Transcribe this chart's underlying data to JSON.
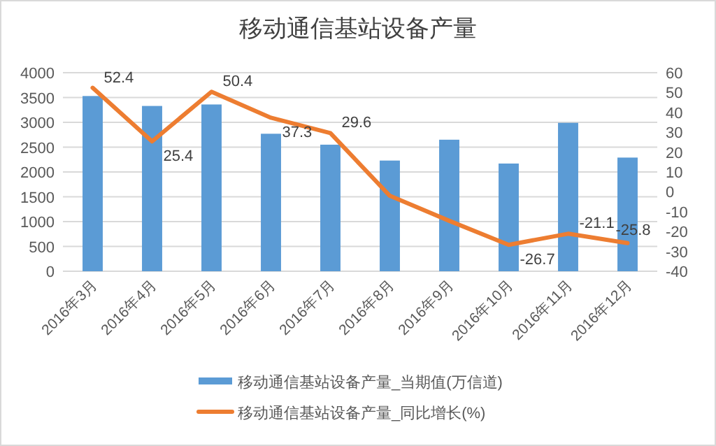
{
  "chart_data": {
    "type": "bar",
    "title": "移动通信基站设备产量",
    "categories": [
      "2016年3月",
      "2016年4月",
      "2016年5月",
      "2016年6月",
      "2016年7月",
      "2016年8月",
      "2016年9月",
      "2016年10月",
      "2016年11月",
      "2016年12月"
    ],
    "series": [
      {
        "name": "移动通信基站设备产量_当期值(万信道)",
        "color": "#5b9bd5",
        "values": [
          3530,
          3330,
          3360,
          2770,
          2550,
          2230,
          2650,
          2170,
          2990,
          2290
        ]
      },
      {
        "name": "移动通信基站设备产量_同比增长(%)",
        "color": "#ed7d31",
        "type": "line",
        "axis": "y2",
        "values": [
          52.4,
          25.4,
          50.4,
          37.3,
          29.6,
          -2,
          -14.6,
          -26.7,
          -21.1,
          -25.8
        ],
        "value_labels": [
          "52.4",
          "25.4",
          "50.4",
          "37.3",
          "29.6",
          null,
          null,
          "-26.7",
          "-21.1",
          "-25.8"
        ]
      }
    ],
    "ylim": [
      0,
      4000
    ],
    "yticks": [
      0,
      500,
      1000,
      1500,
      2000,
      2500,
      3000,
      3500,
      4000
    ],
    "y2lim": [
      -40,
      60
    ],
    "y2ticks": [
      -40,
      -30,
      -20,
      -10,
      0,
      10,
      20,
      30,
      40,
      50,
      60
    ],
    "grid": "y",
    "legend": "bottom"
  }
}
